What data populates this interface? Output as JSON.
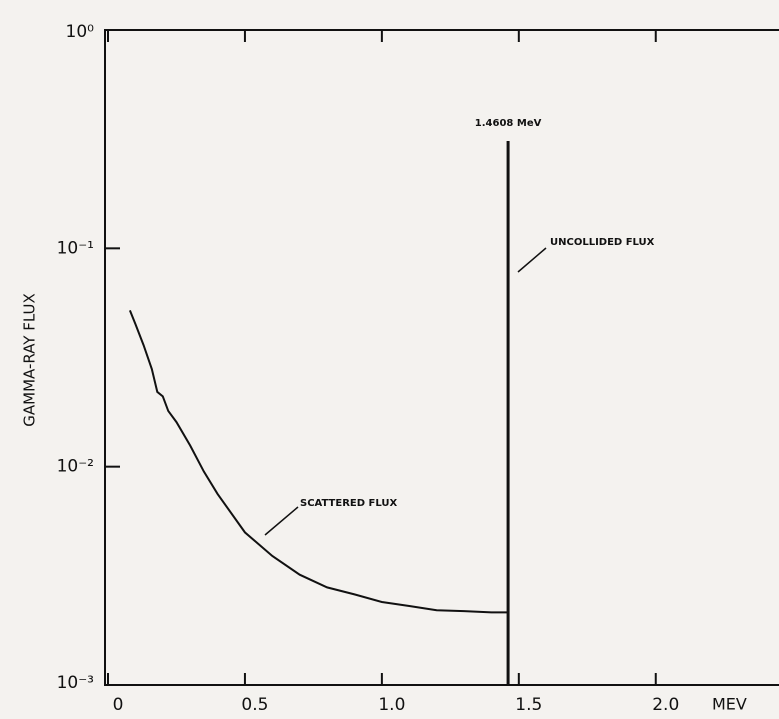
{
  "chart_data": {
    "type": "line",
    "y_label": "GAMMA-RAY FLUX",
    "x_label": "MEV",
    "log_y": true,
    "xlim": [
      0,
      2.45
    ],
    "ylim": [
      0.001,
      1
    ],
    "xticks": [
      {
        "value": 0,
        "label": "0"
      },
      0.5,
      {
        "value": 1,
        "label": "1.0"
      },
      1.5,
      {
        "value": 2,
        "label": "2.0"
      }
    ],
    "yticks": [
      {
        "value": 0.001,
        "label": "10⁻³"
      },
      {
        "value": 0.01,
        "label": "10⁻²"
      },
      {
        "value": 0.1,
        "label": "10⁻¹"
      },
      {
        "value": 1,
        "label": "10⁰"
      }
    ],
    "color": "#111111",
    "x": [
      0.08,
      0.1,
      0.13,
      0.16,
      0.18,
      0.2,
      0.22,
      0.25,
      0.3,
      0.35,
      0.4,
      0.5,
      0.6,
      0.7,
      0.8,
      0.9,
      1.0,
      1.1,
      1.2,
      1.3,
      1.4,
      1.46
    ],
    "values": [
      0.052,
      0.045,
      0.036,
      0.028,
      0.022,
      0.021,
      0.018,
      0.016,
      0.0125,
      0.0095,
      0.0075,
      0.005,
      0.0039,
      0.0032,
      0.0028,
      0.0026,
      0.0024,
      0.0023,
      0.0022,
      0.00218,
      0.00215,
      0.00215
    ],
    "peak": {
      "x": 1.4608,
      "value": 0.31,
      "label": "1.4608 MeV"
    },
    "annotations": [
      "SCATTERED FLUX",
      "UNCOLLIDED FLUX"
    ]
  }
}
